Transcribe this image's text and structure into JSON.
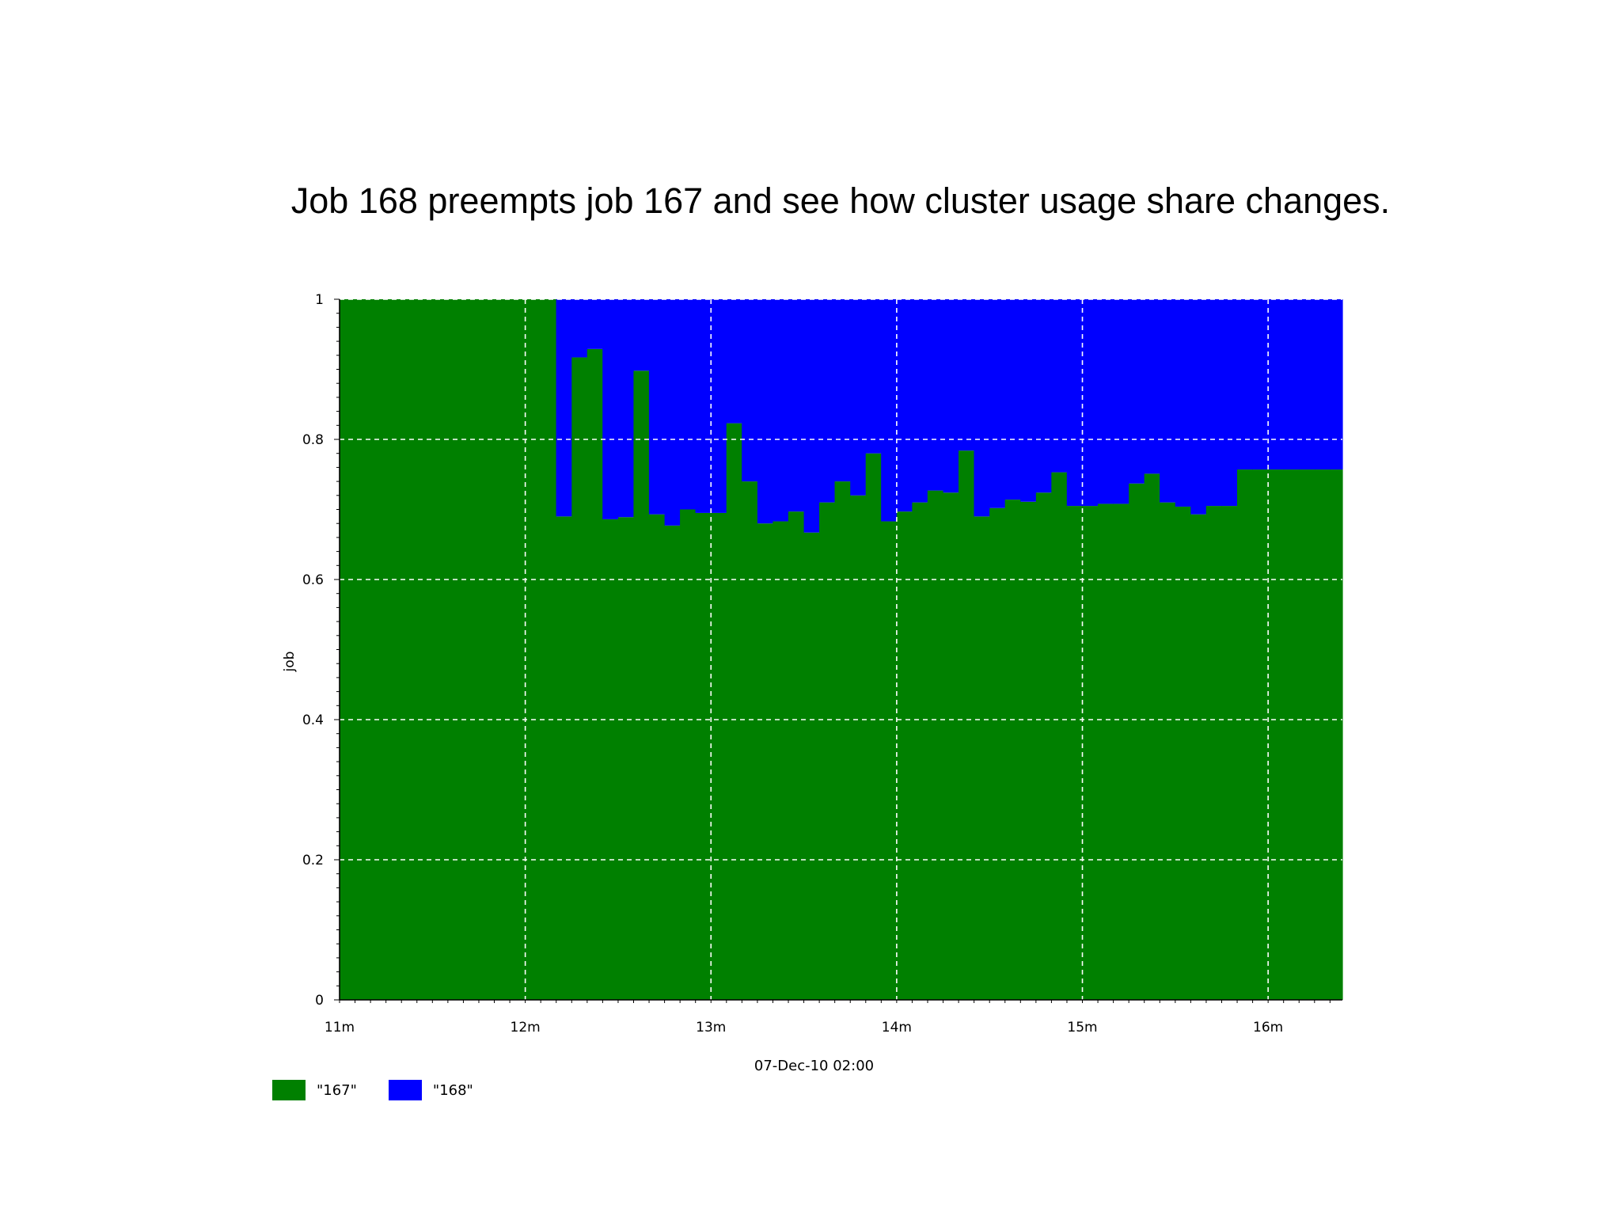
{
  "slide": {
    "title": "Job 168 preempts job 167 and see how cluster usage share changes."
  },
  "chart_data": {
    "type": "area",
    "subtype": "stacked-step",
    "title": "",
    "xlabel": "07-Dec-10 02:00",
    "ylabel": "job",
    "x_unit": "minutes",
    "xlim": [
      11,
      16.4
    ],
    "ylim": [
      0,
      1
    ],
    "x_ticks": [
      11,
      12,
      13,
      14,
      15,
      16
    ],
    "x_tick_labels": [
      "11m",
      "12m",
      "13m",
      "14m",
      "15m",
      "16m"
    ],
    "y_ticks": [
      0,
      0.2,
      0.4,
      0.6,
      0.8,
      1
    ],
    "y_tick_labels": [
      "0",
      "0.2",
      "0.4",
      "0.6",
      "0.8",
      "1"
    ],
    "grid": true,
    "grid_style": "dashed",
    "legend_position": "bottom-left",
    "x": [
      11.0,
      12.166,
      12.25,
      12.333,
      12.416,
      12.5,
      12.583,
      12.666,
      12.75,
      12.833,
      12.916,
      13.0,
      13.083,
      13.166,
      13.25,
      13.333,
      13.416,
      13.5,
      13.583,
      13.666,
      13.75,
      13.833,
      13.916,
      14.0,
      14.083,
      14.166,
      14.25,
      14.333,
      14.416,
      14.5,
      14.583,
      14.666,
      14.75,
      14.833,
      14.916,
      15.0,
      15.083,
      15.166,
      15.25,
      15.333,
      15.416,
      15.5,
      15.583,
      15.666,
      15.75,
      15.833,
      15.916,
      16.0,
      16.083,
      16.166,
      16.25,
      16.333
    ],
    "series": [
      {
        "name": "\"167\"",
        "color": "#008000",
        "values": [
          1.0,
          0.69,
          0.917,
          0.929,
          0.686,
          0.689,
          0.898,
          0.693,
          0.677,
          0.7,
          0.695,
          0.695,
          0.823,
          0.74,
          0.68,
          0.683,
          0.697,
          0.667,
          0.71,
          0.74,
          0.72,
          0.78,
          0.683,
          0.697,
          0.71,
          0.727,
          0.724,
          0.784,
          0.69,
          0.702,
          0.714,
          0.711,
          0.724,
          0.753,
          0.705,
          0.705,
          0.708,
          0.708,
          0.737,
          0.751,
          0.71,
          0.704,
          0.693,
          0.705,
          0.705,
          0.757,
          0.757,
          0.757,
          0.757,
          0.757,
          0.757,
          0.757
        ]
      },
      {
        "name": "\"168\"",
        "color": "#0000ff",
        "values": [
          0.0,
          0.31,
          0.083,
          0.071,
          0.314,
          0.311,
          0.102,
          0.307,
          0.323,
          0.3,
          0.305,
          0.305,
          0.177,
          0.26,
          0.32,
          0.317,
          0.303,
          0.333,
          0.29,
          0.26,
          0.28,
          0.22,
          0.317,
          0.303,
          0.29,
          0.273,
          0.276,
          0.216,
          0.31,
          0.298,
          0.286,
          0.289,
          0.276,
          0.247,
          0.295,
          0.295,
          0.292,
          0.292,
          0.263,
          0.249,
          0.29,
          0.296,
          0.307,
          0.295,
          0.295,
          0.243,
          0.243,
          0.243,
          0.243,
          0.243,
          0.243,
          0.243
        ]
      }
    ]
  }
}
